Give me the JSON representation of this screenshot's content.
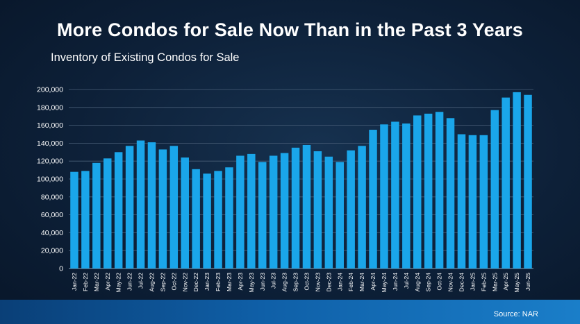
{
  "header": {
    "title": "More Condos for Sale Now Than in the Past 3 Years",
    "subtitle": "Inventory of Existing Condos for Sale"
  },
  "footer": {
    "source": "Source: NAR"
  },
  "colors": {
    "bar": "#1aa6ea",
    "grid": "#4a5f78",
    "axis_text": "#ffffff",
    "footer_band": "#0f5fa7"
  },
  "chart_data": {
    "type": "bar",
    "title": "More Condos for Sale Now Than in the Past 3 Years",
    "subtitle": "Inventory of Existing Condos for Sale",
    "xlabel": "",
    "ylabel": "",
    "ylim": [
      0,
      200000
    ],
    "yticks": [
      0,
      20000,
      40000,
      60000,
      80000,
      100000,
      120000,
      140000,
      160000,
      180000,
      200000
    ],
    "ytick_labels": [
      "0",
      "20,000",
      "40,000",
      "60,000",
      "80,000",
      "100,000",
      "120,000",
      "140,000",
      "160,000",
      "180,000",
      "200,000"
    ],
    "grid": true,
    "legend": "none",
    "categories": [
      "Jan-22",
      "Feb-22",
      "Mar-22",
      "Apr-22",
      "May-22",
      "Jun-22",
      "Jul-22",
      "Aug-22",
      "Sep-22",
      "Oct-22",
      "Nov-22",
      "Dec-22",
      "Jan-23",
      "Feb-23",
      "Mar-23",
      "Apr-23",
      "May-23",
      "Jun-23",
      "Jul-23",
      "Aug-23",
      "Sep-23",
      "Oct-23",
      "Nov-23",
      "Dec-23",
      "Jan-24",
      "Feb-24",
      "Mar-24",
      "Apr-24",
      "May-24",
      "Jun-24",
      "Jul-24",
      "Aug-24",
      "Sep-24",
      "Oct-24",
      "Nov-24",
      "Dec-24",
      "Jan-25",
      "Feb-25",
      "Mar-25",
      "Apr-25",
      "May-25",
      "Jun-25"
    ],
    "values": [
      108000,
      109000,
      118000,
      123000,
      130000,
      137000,
      143000,
      141000,
      133000,
      137000,
      124000,
      111000,
      106000,
      109000,
      113000,
      126000,
      128000,
      119000,
      126000,
      129000,
      135000,
      138000,
      131000,
      125000,
      119000,
      132000,
      137000,
      155000,
      161000,
      164000,
      162000,
      171000,
      173000,
      175000,
      168000,
      150000,
      149000,
      149000,
      177000,
      191000,
      197000,
      194000
    ]
  }
}
